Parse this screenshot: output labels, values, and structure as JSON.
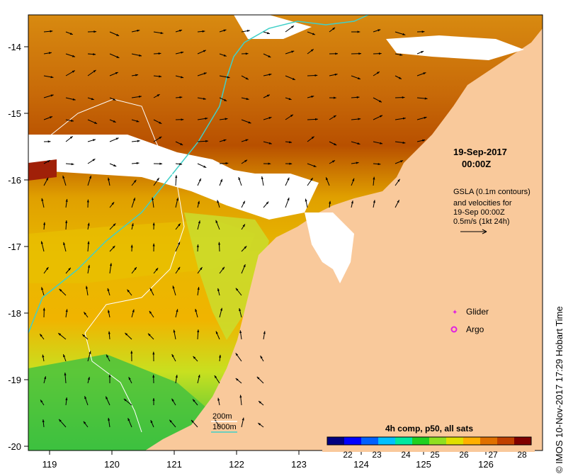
{
  "map": {
    "date": "19-Sep-2017",
    "time": "00:00Z",
    "product_lines": [
      "GSLA (0.1m contours)",
      "and velocities for",
      "19-Sep 00:00Z",
      "0.5m/s (1kt 24h)"
    ],
    "x_ticks": [
      "119",
      "120",
      "121",
      "122",
      "123",
      "124",
      "125",
      "126"
    ],
    "y_ticks": [
      "-14",
      "-15",
      "-16",
      "-17",
      "-18",
      "-19",
      "-20"
    ],
    "legend": {
      "glider": "Glider",
      "argo": "Argo",
      "glider_color": "#e020e0",
      "argo_color": "#e020e0"
    },
    "depth_legend": {
      "d200": "200m",
      "d1000": "1000m",
      "c200": "#ffffff",
      "c1000": "#40d0c8"
    },
    "colorbar": {
      "title": "4h comp, p50, all sats",
      "ticks": [
        "22",
        "23",
        "24",
        "25",
        "26",
        "27",
        "28"
      ],
      "colors": [
        "#00007f",
        "#0000ff",
        "#0060ff",
        "#00c0ff",
        "#00e8a0",
        "#20d020",
        "#90e020",
        "#e0e000",
        "#ffb000",
        "#e07000",
        "#c04000",
        "#800000"
      ]
    },
    "land_color": "#f9c99b",
    "credit": "© IMOS 10-Nov-2017 17:29 Hobart Time"
  }
}
